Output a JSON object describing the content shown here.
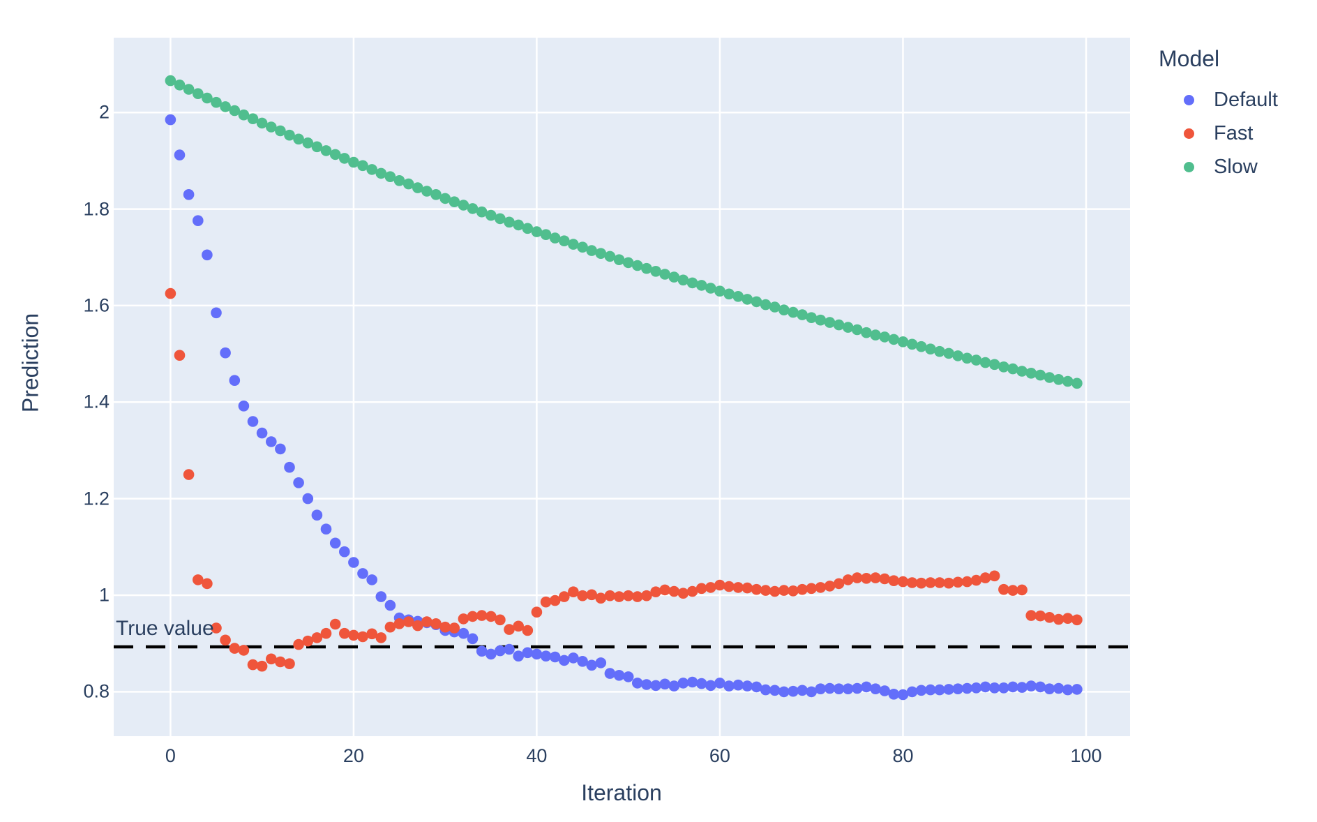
{
  "figure": {
    "background_color": "#ffffff",
    "text_color": "#2a3f5f"
  },
  "chart_data": {
    "type": "scatter",
    "title": "",
    "xlabel": "Iteration",
    "ylabel": "Prediction",
    "legend_title": "Model",
    "legend_position": "top-right-outside",
    "grid": true,
    "plot_bgcolor": "#e5ecf6",
    "grid_color": "#ffffff",
    "x_range": [
      -6.2,
      104.8
    ],
    "y_range": [
      0.708,
      2.155
    ],
    "x_ticks": [
      0,
      20,
      40,
      60,
      80,
      100
    ],
    "x_tick_labels": [
      "0",
      "20",
      "40",
      "60",
      "80",
      "100"
    ],
    "y_ticks": [
      0.8,
      1,
      1.2,
      1.4,
      1.6,
      1.8,
      2
    ],
    "y_tick_labels": [
      "0.8",
      "1",
      "1.2",
      "1.4",
      "1.6",
      "1.8",
      "2"
    ],
    "annotation": {
      "text": "True value",
      "y": 0.893
    },
    "reference_line": {
      "y": 0.893,
      "style": "dashed",
      "color": "#000000"
    },
    "x": [
      0,
      1,
      2,
      3,
      4,
      5,
      6,
      7,
      8,
      9,
      10,
      11,
      12,
      13,
      14,
      15,
      16,
      17,
      18,
      19,
      20,
      21,
      22,
      23,
      24,
      25,
      26,
      27,
      28,
      29,
      30,
      31,
      32,
      33,
      34,
      35,
      36,
      37,
      38,
      39,
      40,
      41,
      42,
      43,
      44,
      45,
      46,
      47,
      48,
      49,
      50,
      51,
      52,
      53,
      54,
      55,
      56,
      57,
      58,
      59,
      60,
      61,
      62,
      63,
      64,
      65,
      66,
      67,
      68,
      69,
      70,
      71,
      72,
      73,
      74,
      75,
      76,
      77,
      78,
      79,
      80,
      81,
      82,
      83,
      84,
      85,
      86,
      87,
      88,
      89,
      90,
      91,
      92,
      93,
      94,
      95,
      96,
      97,
      98,
      99
    ],
    "series": [
      {
        "name": "Default",
        "color": "#636efa",
        "values": [
          1.985,
          1.912,
          1.83,
          1.776,
          1.705,
          1.585,
          1.502,
          1.445,
          1.392,
          1.36,
          1.336,
          1.318,
          1.303,
          1.265,
          1.233,
          1.2,
          1.166,
          1.137,
          1.108,
          1.09,
          1.068,
          1.045,
          1.032,
          0.997,
          0.979,
          0.953,
          0.949,
          0.946,
          0.943,
          0.939,
          0.927,
          0.924,
          0.921,
          0.91,
          0.884,
          0.878,
          0.885,
          0.888,
          0.874,
          0.881,
          0.878,
          0.874,
          0.872,
          0.865,
          0.87,
          0.863,
          0.855,
          0.86,
          0.838,
          0.834,
          0.831,
          0.818,
          0.815,
          0.813,
          0.816,
          0.812,
          0.818,
          0.82,
          0.817,
          0.813,
          0.818,
          0.812,
          0.814,
          0.812,
          0.81,
          0.804,
          0.803,
          0.8,
          0.801,
          0.803,
          0.8,
          0.806,
          0.807,
          0.806,
          0.806,
          0.807,
          0.81,
          0.806,
          0.802,
          0.795,
          0.794,
          0.8,
          0.803,
          0.804,
          0.804,
          0.805,
          0.806,
          0.807,
          0.808,
          0.81,
          0.808,
          0.808,
          0.81,
          0.809,
          0.812,
          0.81,
          0.806,
          0.807,
          0.804,
          0.805
        ]
      },
      {
        "name": "Fast",
        "color": "#ef553b",
        "values": [
          1.625,
          1.497,
          1.25,
          1.032,
          1.024,
          0.932,
          0.907,
          0.89,
          0.886,
          0.856,
          0.853,
          0.868,
          0.862,
          0.858,
          0.898,
          0.905,
          0.912,
          0.921,
          0.94,
          0.921,
          0.917,
          0.914,
          0.92,
          0.912,
          0.934,
          0.941,
          0.945,
          0.937,
          0.945,
          0.941,
          0.934,
          0.932,
          0.951,
          0.956,
          0.958,
          0.956,
          0.949,
          0.929,
          0.936,
          0.927,
          0.965,
          0.986,
          0.989,
          0.997,
          1.007,
          0.999,
          1.001,
          0.994,
          0.999,
          0.997,
          0.999,
          0.997,
          0.999,
          1.007,
          1.011,
          1.008,
          1.004,
          1.008,
          1.014,
          1.016,
          1.021,
          1.018,
          1.016,
          1.015,
          1.012,
          1.01,
          1.008,
          1.01,
          1.009,
          1.012,
          1.014,
          1.016,
          1.019,
          1.024,
          1.032,
          1.036,
          1.035,
          1.036,
          1.034,
          1.03,
          1.028,
          1.026,
          1.025,
          1.026,
          1.026,
          1.025,
          1.027,
          1.028,
          1.031,
          1.036,
          1.04,
          1.012,
          1.01,
          1.011,
          0.958,
          0.957,
          0.954,
          0.95,
          0.952,
          0.949
        ]
      },
      {
        "name": "Slow",
        "color": "#50be8e",
        "values": [
          2.066,
          2.057,
          2.048,
          2.039,
          2.03,
          2.021,
          2.012,
          2.004,
          1.995,
          1.987,
          1.978,
          1.97,
          1.962,
          1.953,
          1.945,
          1.937,
          1.929,
          1.921,
          1.913,
          1.905,
          1.897,
          1.89,
          1.882,
          1.874,
          1.867,
          1.859,
          1.852,
          1.844,
          1.837,
          1.83,
          1.822,
          1.815,
          1.808,
          1.801,
          1.794,
          1.787,
          1.78,
          1.773,
          1.767,
          1.76,
          1.753,
          1.747,
          1.74,
          1.734,
          1.727,
          1.721,
          1.714,
          1.708,
          1.702,
          1.695,
          1.689,
          1.683,
          1.677,
          1.671,
          1.665,
          1.659,
          1.653,
          1.647,
          1.642,
          1.636,
          1.63,
          1.624,
          1.619,
          1.613,
          1.608,
          1.602,
          1.597,
          1.591,
          1.586,
          1.581,
          1.575,
          1.57,
          1.565,
          1.56,
          1.555,
          1.55,
          1.544,
          1.539,
          1.535,
          1.53,
          1.525,
          1.52,
          1.515,
          1.51,
          1.505,
          1.501,
          1.496,
          1.491,
          1.487,
          1.482,
          1.478,
          1.473,
          1.469,
          1.464,
          1.46,
          1.456,
          1.451,
          1.447,
          1.443,
          1.439
        ]
      }
    ]
  }
}
